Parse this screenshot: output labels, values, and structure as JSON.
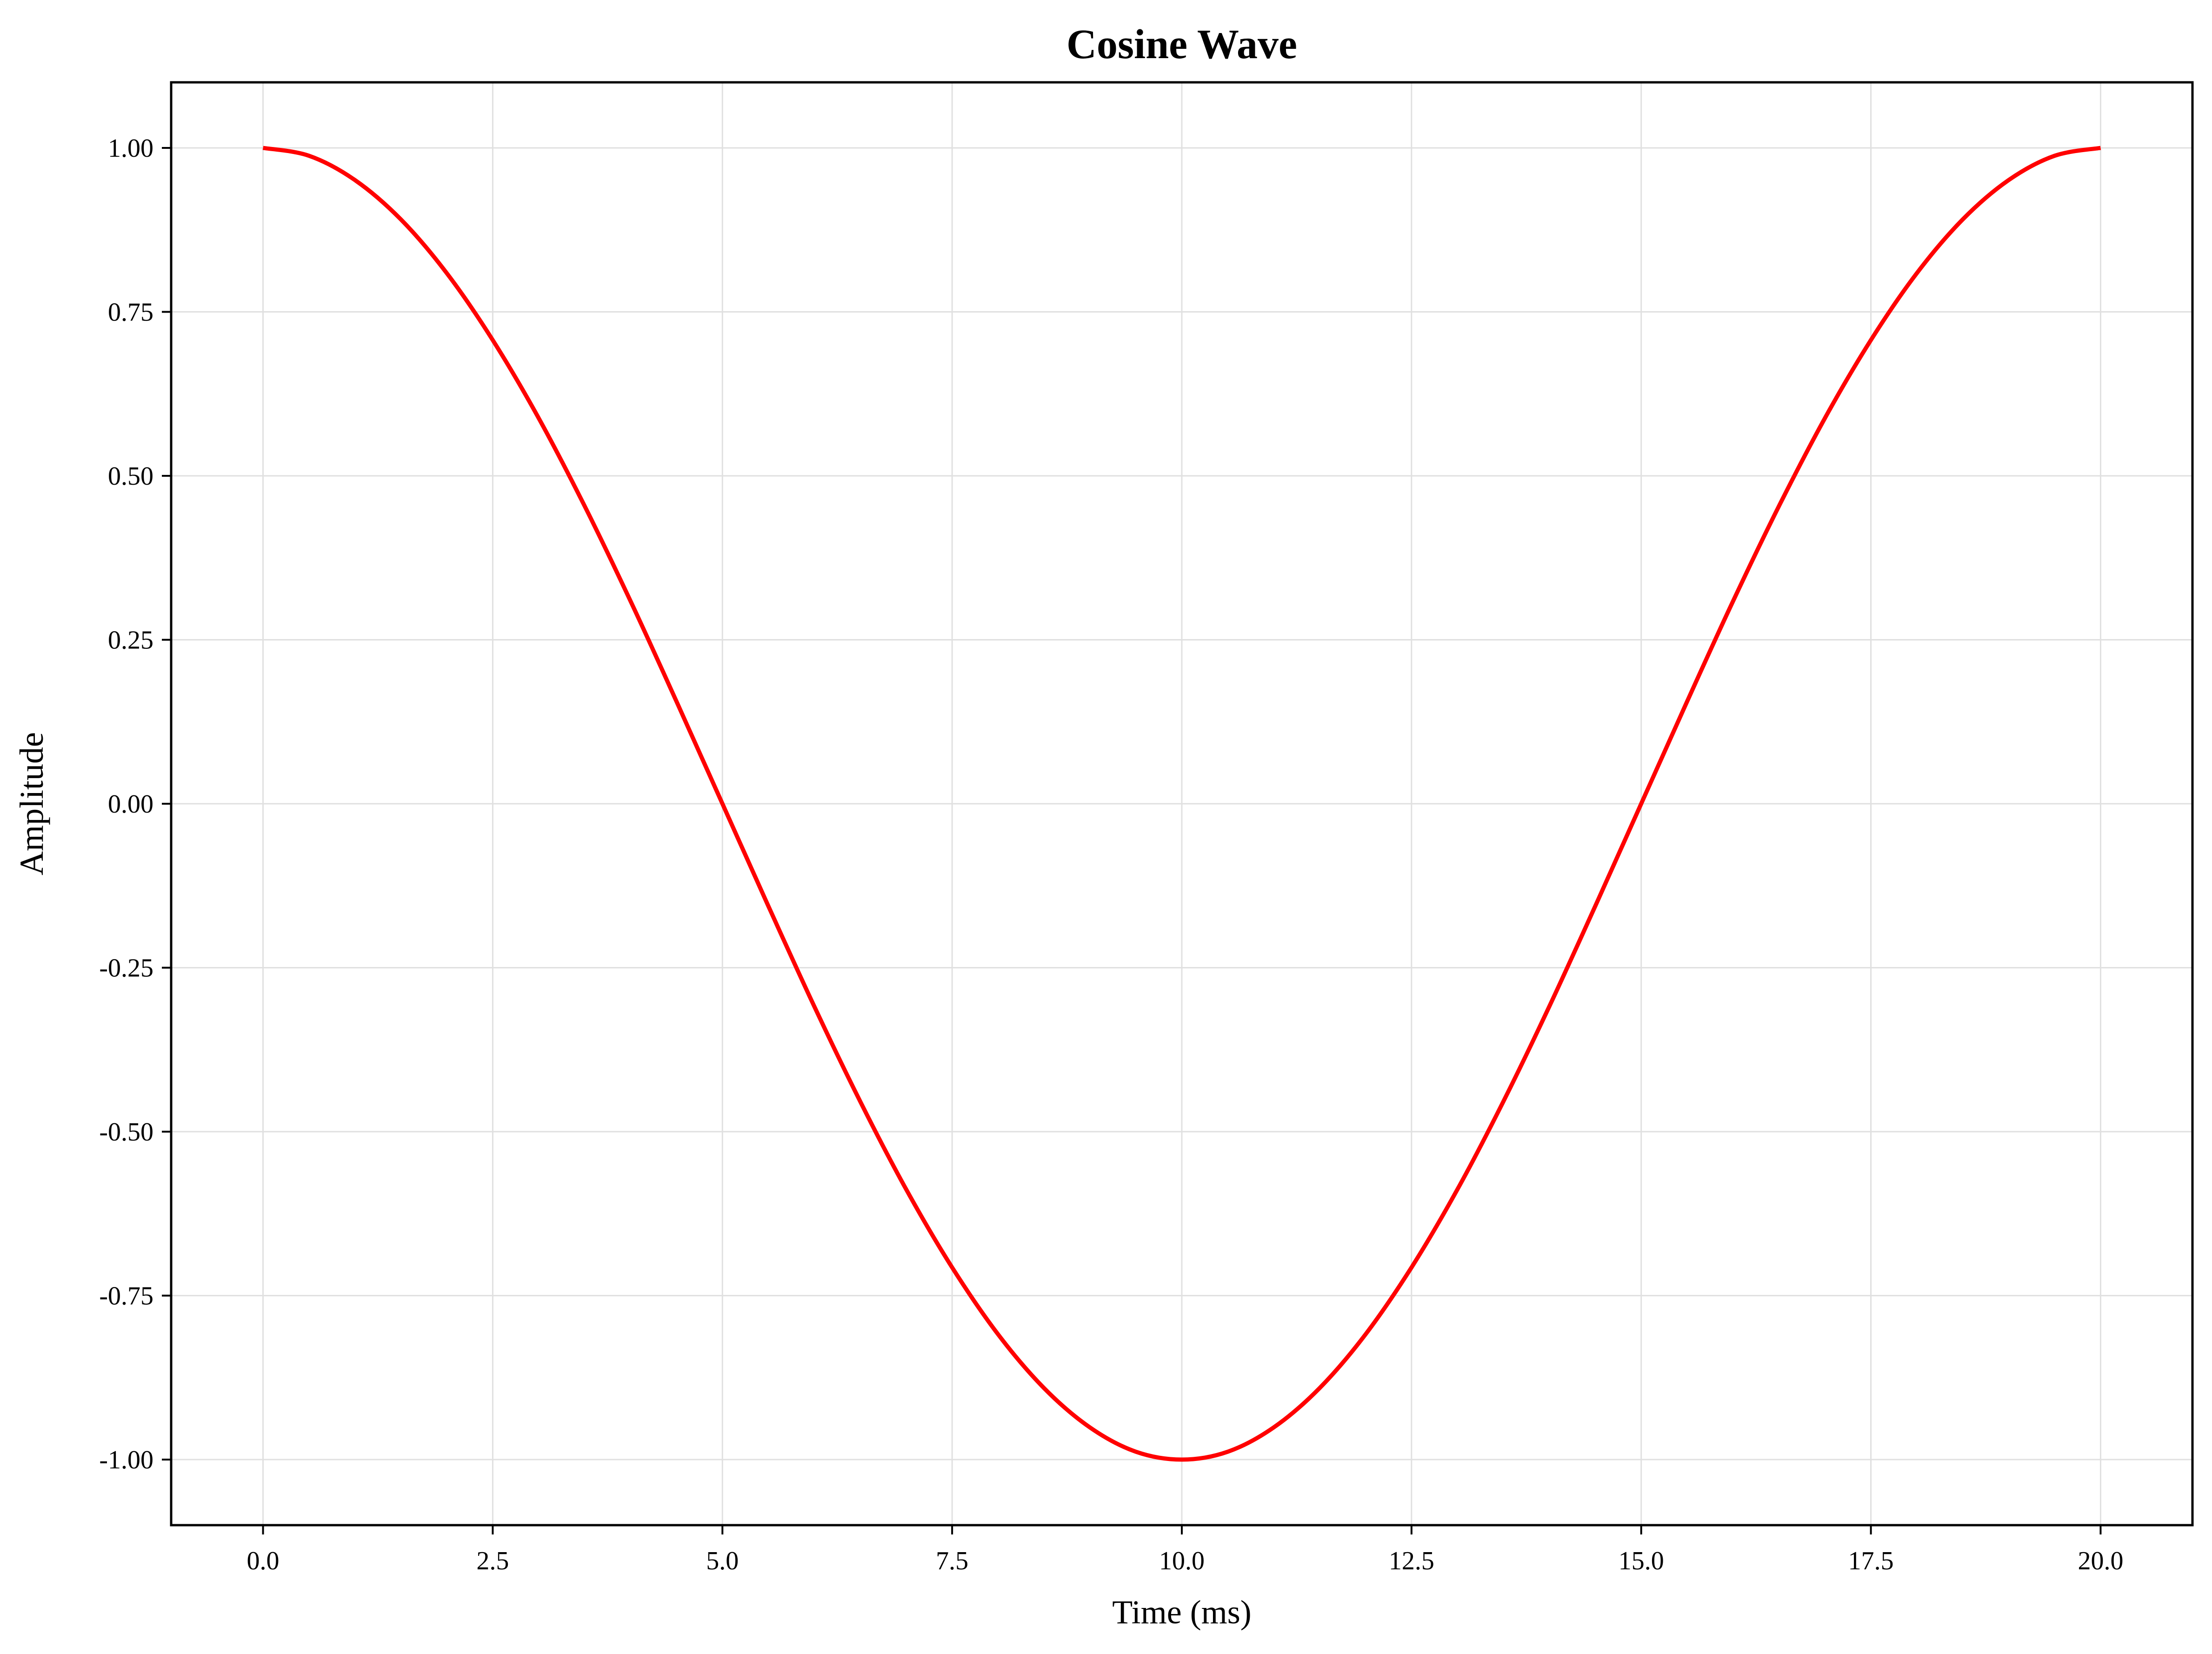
{
  "chart_data": {
    "type": "line",
    "title": "Cosine Wave",
    "xlabel": "Time (ms)",
    "ylabel": "Amplitude",
    "xlim": [
      -1.0,
      21.0
    ],
    "ylim": [
      -1.1,
      1.1
    ],
    "x_ticks": [
      0.0,
      2.5,
      5.0,
      7.5,
      10.0,
      12.5,
      15.0,
      17.5,
      20.0
    ],
    "x_tick_labels": [
      "0.0",
      "2.5",
      "5.0",
      "7.5",
      "10.0",
      "12.5",
      "15.0",
      "17.5",
      "20.0"
    ],
    "y_ticks": [
      1.0,
      0.75,
      0.5,
      0.25,
      0.0,
      -0.25,
      -0.5,
      -0.75,
      -1.0
    ],
    "y_tick_labels": [
      "1.00",
      "0.75",
      "0.50",
      "0.25",
      "0.00",
      "-0.25",
      "-0.50",
      "-0.75",
      "-1.00"
    ],
    "grid": true,
    "legend": "none",
    "series": [
      {
        "color": "#ff0000",
        "x": [
          0.0,
          0.5,
          1.0,
          1.5,
          2.0,
          2.5,
          3.0,
          3.5,
          4.0,
          4.5,
          5.0,
          5.5,
          6.0,
          6.5,
          7.0,
          7.5,
          8.0,
          8.5,
          9.0,
          9.5,
          10.0,
          10.5,
          11.0,
          11.5,
          12.0,
          12.5,
          13.0,
          13.5,
          14.0,
          14.5,
          15.0,
          15.5,
          16.0,
          16.5,
          17.0,
          17.5,
          18.0,
          18.5,
          19.0,
          19.5,
          20.0
        ],
        "y": [
          1.0,
          0.988,
          0.951,
          0.891,
          0.809,
          0.707,
          0.588,
          0.454,
          0.309,
          0.156,
          0.0,
          -0.156,
          -0.309,
          -0.454,
          -0.588,
          -0.707,
          -0.809,
          -0.891,
          -0.951,
          -0.988,
          -1.0,
          -0.988,
          -0.951,
          -0.891,
          -0.809,
          -0.707,
          -0.588,
          -0.454,
          -0.309,
          -0.156,
          0.0,
          0.156,
          0.309,
          0.454,
          0.588,
          0.707,
          0.809,
          0.891,
          0.951,
          0.988,
          1.0
        ]
      }
    ]
  },
  "colors": {
    "line": "#ff0000",
    "grid": "#e0e0e0",
    "axes": "#000000"
  }
}
